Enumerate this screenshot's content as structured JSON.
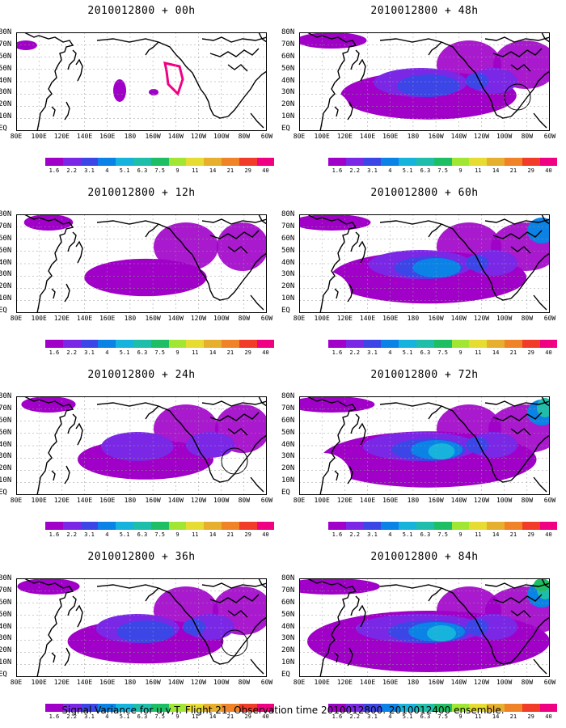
{
  "caption": "Signal Variance for u,v,T. Flight 21. Observation time 2010012800. 2010012400 ensemble.",
  "latitude_labels": [
    "80N",
    "70N",
    "60N",
    "50N",
    "40N",
    "30N",
    "20N",
    "10N",
    "EQ"
  ],
  "longitude_labels": [
    "80E",
    "100E",
    "120E",
    "140E",
    "160E",
    "180",
    "160W",
    "140W",
    "120W",
    "100W",
    "80W",
    "60W"
  ],
  "colorbar": {
    "tick_labels": [
      "1.6",
      "2.2",
      "3.1",
      "4",
      "5.1",
      "6.3",
      "7.5",
      "9",
      "11",
      "14",
      "21",
      "29",
      "40"
    ],
    "colors": [
      "#a000c8",
      "#7a28e6",
      "#3c46e6",
      "#0a82e6",
      "#16b4dc",
      "#1ebeaa",
      "#1ebe64",
      "#a0e632",
      "#e6dc32",
      "#e6af2d",
      "#f08228",
      "#f03c28",
      "#f00082"
    ]
  },
  "panels": [
    {
      "title": "2010012800 + 00h",
      "intensity": 0.0
    },
    {
      "title": "2010012800 + 48h",
      "intensity": 0.5
    },
    {
      "title": "2010012800 + 12h",
      "intensity": 0.1
    },
    {
      "title": "2010012800 + 60h",
      "intensity": 0.65
    },
    {
      "title": "2010012800 + 24h",
      "intensity": 0.2
    },
    {
      "title": "2010012800 + 72h",
      "intensity": 0.8
    },
    {
      "title": "2010012800 + 36h",
      "intensity": 0.35
    },
    {
      "title": "2010012800 + 84h",
      "intensity": 1.0
    }
  ]
}
